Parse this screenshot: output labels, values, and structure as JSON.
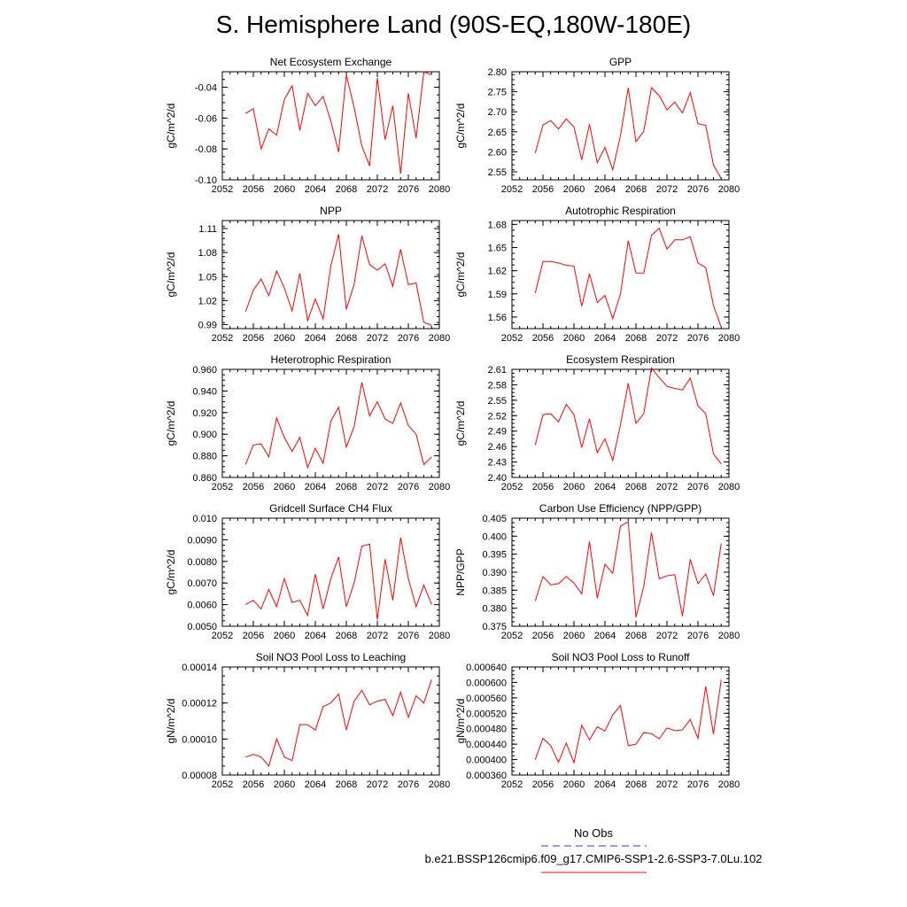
{
  "title": "S. Hemisphere Land (90S-EQ,180W-180E)",
  "legend": {
    "obs": {
      "label": "No Obs",
      "color": "#3333cc",
      "style": "dashed"
    },
    "run": {
      "label": "b.e21.BSSP126cmip6.f09_g17.CMIP6-SSP1-2.6-SSP3-7.0Lu.102",
      "color": "#ff0000",
      "style": "solid"
    }
  },
  "chart_data": [
    {
      "type": "line",
      "title": "Net Ecosystem Exchange",
      "ylabel": "gC/m^2/d",
      "xlim": [
        2052,
        2080
      ],
      "xticks": [
        2052,
        2056,
        2060,
        2064,
        2068,
        2072,
        2076,
        2080
      ],
      "ylim": [
        -0.1,
        -0.03
      ],
      "yticks": [
        "-0.10",
        "-0.08",
        "-0.06",
        "-0.04"
      ],
      "series": [
        {
          "color": "#ff0000",
          "x": [
            2055,
            2056,
            2057,
            2058,
            2059,
            2060,
            2061,
            2062,
            2063,
            2064,
            2065,
            2066,
            2067,
            2068,
            2069,
            2070,
            2071,
            2072,
            2073,
            2074,
            2075,
            2076,
            2077,
            2078,
            2079
          ],
          "y": [
            -0.057,
            -0.054,
            -0.08,
            -0.067,
            -0.071,
            -0.048,
            -0.039,
            -0.068,
            -0.044,
            -0.052,
            -0.046,
            -0.062,
            -0.082,
            -0.032,
            -0.053,
            -0.078,
            -0.091,
            -0.034,
            -0.074,
            -0.052,
            -0.096,
            -0.044,
            -0.073,
            -0.03,
            -0.032
          ]
        }
      ]
    },
    {
      "type": "line",
      "title": "GPP",
      "ylabel": "gC/m^2/d",
      "xlim": [
        2052,
        2080
      ],
      "xticks": [
        2052,
        2056,
        2060,
        2064,
        2068,
        2072,
        2076,
        2080
      ],
      "ylim": [
        2.53,
        2.8
      ],
      "yticks": [
        "2.55",
        "2.60",
        "2.65",
        "2.70",
        "2.75",
        "2.80"
      ],
      "series": [
        {
          "color": "#ff0000",
          "x": [
            2055,
            2056,
            2057,
            2058,
            2059,
            2060,
            2061,
            2062,
            2063,
            2064,
            2065,
            2066,
            2067,
            2068,
            2069,
            2070,
            2071,
            2072,
            2073,
            2074,
            2075,
            2076,
            2077,
            2078,
            2079
          ],
          "y": [
            2.597,
            2.667,
            2.678,
            2.657,
            2.682,
            2.662,
            2.58,
            2.669,
            2.573,
            2.611,
            2.555,
            2.64,
            2.76,
            2.625,
            2.651,
            2.76,
            2.74,
            2.705,
            2.724,
            2.697,
            2.748,
            2.67,
            2.666,
            2.567,
            2.533
          ]
        }
      ]
    },
    {
      "type": "line",
      "title": "NPP",
      "ylabel": "gC/m^2/d",
      "xlim": [
        2052,
        2080
      ],
      "xticks": [
        2052,
        2056,
        2060,
        2064,
        2068,
        2072,
        2076,
        2080
      ],
      "ylim": [
        0.985,
        1.12
      ],
      "yticks": [
        "0.99",
        "1.02",
        "1.05",
        "1.08",
        "1.11"
      ],
      "series": [
        {
          "color": "#ff0000",
          "x": [
            2055,
            2056,
            2057,
            2058,
            2059,
            2060,
            2061,
            2062,
            2063,
            2064,
            2065,
            2066,
            2067,
            2068,
            2069,
            2070,
            2071,
            2072,
            2073,
            2074,
            2075,
            2076,
            2077,
            2078,
            2079
          ],
          "y": [
            1.006,
            1.033,
            1.047,
            1.026,
            1.057,
            1.036,
            1.007,
            1.054,
            0.995,
            1.022,
            0.997,
            1.063,
            1.103,
            1.009,
            1.04,
            1.101,
            1.065,
            1.058,
            1.066,
            1.038,
            1.084,
            1.04,
            1.042,
            0.993,
            0.989
          ]
        }
      ]
    },
    {
      "type": "line",
      "title": "Autotrophic Respiration",
      "ylabel": "gC/m^2/d",
      "xlim": [
        2052,
        2080
      ],
      "xticks": [
        2052,
        2056,
        2060,
        2064,
        2068,
        2072,
        2076,
        2080
      ],
      "ylim": [
        1.545,
        1.685
      ],
      "yticks": [
        "1.56",
        "1.59",
        "1.62",
        "1.65",
        "1.68"
      ],
      "series": [
        {
          "color": "#ff0000",
          "x": [
            2055,
            2056,
            2057,
            2058,
            2059,
            2060,
            2061,
            2062,
            2063,
            2064,
            2065,
            2066,
            2067,
            2068,
            2069,
            2070,
            2071,
            2072,
            2073,
            2074,
            2075,
            2076,
            2077,
            2078,
            2079
          ],
          "y": [
            1.591,
            1.632,
            1.632,
            1.63,
            1.627,
            1.626,
            1.574,
            1.616,
            1.579,
            1.588,
            1.558,
            1.59,
            1.659,
            1.617,
            1.617,
            1.666,
            1.675,
            1.648,
            1.66,
            1.66,
            1.664,
            1.63,
            1.624,
            1.575,
            1.547
          ]
        }
      ]
    },
    {
      "type": "line",
      "title": "Heterotrophic Respiration",
      "ylabel": "gC/m^2/d",
      "xlim": [
        2052,
        2080
      ],
      "xticks": [
        2052,
        2056,
        2060,
        2064,
        2068,
        2072,
        2076,
        2080
      ],
      "ylim": [
        0.86,
        0.96
      ],
      "yticks": [
        "0.860",
        "0.880",
        "0.900",
        "0.920",
        "0.940",
        "0.960"
      ],
      "series": [
        {
          "color": "#ff0000",
          "x": [
            2055,
            2056,
            2057,
            2058,
            2059,
            2060,
            2061,
            2062,
            2063,
            2064,
            2065,
            2066,
            2067,
            2068,
            2069,
            2070,
            2071,
            2072,
            2073,
            2074,
            2075,
            2076,
            2077,
            2078,
            2079
          ],
          "y": [
            0.872,
            0.89,
            0.891,
            0.879,
            0.915,
            0.897,
            0.884,
            0.897,
            0.869,
            0.887,
            0.873,
            0.912,
            0.925,
            0.888,
            0.907,
            0.948,
            0.917,
            0.93,
            0.914,
            0.91,
            0.929,
            0.908,
            0.9,
            0.872,
            0.879
          ]
        }
      ]
    },
    {
      "type": "line",
      "title": "Ecosystem Respiration",
      "ylabel": "gC/m^2/d",
      "xlim": [
        2052,
        2080
      ],
      "xticks": [
        2052,
        2056,
        2060,
        2064,
        2068,
        2072,
        2076,
        2080
      ],
      "ylim": [
        2.4,
        2.61
      ],
      "yticks": [
        "2.40",
        "2.43",
        "2.46",
        "2.49",
        "2.52",
        "2.55",
        "2.58",
        "2.61"
      ],
      "series": [
        {
          "color": "#ff0000",
          "x": [
            2055,
            2056,
            2057,
            2058,
            2059,
            2060,
            2061,
            2062,
            2063,
            2064,
            2065,
            2066,
            2067,
            2068,
            2069,
            2070,
            2071,
            2072,
            2073,
            2074,
            2075,
            2076,
            2077,
            2078,
            2079
          ],
          "y": [
            2.463,
            2.522,
            2.524,
            2.508,
            2.542,
            2.522,
            2.458,
            2.514,
            2.448,
            2.475,
            2.433,
            2.502,
            2.583,
            2.505,
            2.524,
            2.613,
            2.594,
            2.577,
            2.573,
            2.57,
            2.593,
            2.539,
            2.524,
            2.446,
            2.426
          ]
        }
      ]
    },
    {
      "type": "line",
      "title": "Gridcell Surface CH4 Flux",
      "ylabel": "gC/m^2/d",
      "xlim": [
        2052,
        2080
      ],
      "xticks": [
        2052,
        2056,
        2060,
        2064,
        2068,
        2072,
        2076,
        2080
      ],
      "ylim": [
        0.005,
        0.01
      ],
      "yticks": [
        "0.0050",
        "0.0060",
        "0.0070",
        "0.0080",
        "0.0090",
        "0.010"
      ],
      "series": [
        {
          "color": "#ff0000",
          "x": [
            2055,
            2056,
            2057,
            2058,
            2059,
            2060,
            2061,
            2062,
            2063,
            2064,
            2065,
            2066,
            2067,
            2068,
            2069,
            2070,
            2071,
            2072,
            2073,
            2074,
            2075,
            2076,
            2077,
            2078,
            2079
          ],
          "y": [
            0.006,
            0.0062,
            0.0058,
            0.0067,
            0.0059,
            0.0072,
            0.0061,
            0.0062,
            0.0055,
            0.0074,
            0.0058,
            0.0072,
            0.0082,
            0.0059,
            0.007,
            0.0087,
            0.0088,
            0.0053,
            0.0081,
            0.0062,
            0.0091,
            0.0072,
            0.0059,
            0.0069,
            0.006
          ]
        }
      ]
    },
    {
      "type": "line",
      "title": "Carbon Use Efficiency (NPP/GPP)",
      "ylabel": "NPP/GPP",
      "xlim": [
        2052,
        2080
      ],
      "xticks": [
        2052,
        2056,
        2060,
        2064,
        2068,
        2072,
        2076,
        2080
      ],
      "ylim": [
        0.375,
        0.405
      ],
      "yticks": [
        "0.375",
        "0.380",
        "0.385",
        "0.390",
        "0.395",
        "0.400",
        "0.405"
      ],
      "series": [
        {
          "color": "#ff0000",
          "x": [
            2055,
            2056,
            2057,
            2058,
            2059,
            2060,
            2061,
            2062,
            2063,
            2064,
            2065,
            2066,
            2067,
            2068,
            2069,
            2070,
            2071,
            2072,
            2073,
            2074,
            2075,
            2076,
            2077,
            2078,
            2079
          ],
          "y": [
            0.382,
            0.3888,
            0.3865,
            0.3868,
            0.3888,
            0.387,
            0.384,
            0.3985,
            0.3828,
            0.3922,
            0.3897,
            0.4028,
            0.404,
            0.3775,
            0.386,
            0.401,
            0.3882,
            0.389,
            0.3893,
            0.3778,
            0.3936,
            0.3868,
            0.3895,
            0.3835,
            0.398
          ]
        }
      ]
    },
    {
      "type": "line",
      "title": "Soil NO3 Pool Loss to Leaching",
      "ylabel": "gN/m^2/d",
      "xlim": [
        2052,
        2080
      ],
      "xticks": [
        2052,
        2056,
        2060,
        2064,
        2068,
        2072,
        2076,
        2080
      ],
      "ylim": [
        8e-05,
        0.00014
      ],
      "yticks": [
        "0.00008",
        "0.00010",
        "0.00012",
        "0.00014"
      ],
      "series": [
        {
          "color": "#ff0000",
          "x": [
            2055,
            2056,
            2057,
            2058,
            2059,
            2060,
            2061,
            2062,
            2063,
            2064,
            2065,
            2066,
            2067,
            2068,
            2069,
            2070,
            2071,
            2072,
            2073,
            2074,
            2075,
            2076,
            2077,
            2078,
            2079
          ],
          "y": [
            9e-05,
            9.15e-05,
            9e-05,
            8.5e-05,
            0.0001,
            9e-05,
            8.8e-05,
            0.000108,
            0.000108,
            0.000105,
            0.000118,
            0.00012,
            0.000125,
            0.000105,
            0.000121,
            0.000127,
            0.000119,
            0.000121,
            0.000122,
            0.000113,
            0.000126,
            0.000112,
            0.000124,
            0.00012,
            0.000133
          ]
        }
      ]
    },
    {
      "type": "line",
      "title": "Soil NO3 Pool Loss to Runoff",
      "ylabel": "gN/m^2/d",
      "xlim": [
        2052,
        2080
      ],
      "xticks": [
        2052,
        2056,
        2060,
        2064,
        2068,
        2072,
        2076,
        2080
      ],
      "ylim": [
        0.00036,
        0.00064
      ],
      "yticks": [
        "0.000360",
        "0.000400",
        "0.000440",
        "0.000480",
        "0.000520",
        "0.000560",
        "0.000600",
        "0.000640"
      ],
      "series": [
        {
          "color": "#ff0000",
          "x": [
            2055,
            2056,
            2057,
            2058,
            2059,
            2060,
            2061,
            2062,
            2063,
            2064,
            2065,
            2066,
            2067,
            2068,
            2069,
            2070,
            2071,
            2072,
            2073,
            2074,
            2075,
            2076,
            2077,
            2078,
            2079
          ],
          "y": [
            0.0004,
            0.000455,
            0.000436,
            0.000393,
            0.000443,
            0.000392,
            0.000489,
            0.000451,
            0.000485,
            0.000474,
            0.000516,
            0.00054,
            0.000436,
            0.00044,
            0.00047,
            0.000467,
            0.000454,
            0.000482,
            0.000475,
            0.000477,
            0.000504,
            0.000455,
            0.00059,
            0.000466,
            0.000607
          ]
        }
      ]
    }
  ]
}
